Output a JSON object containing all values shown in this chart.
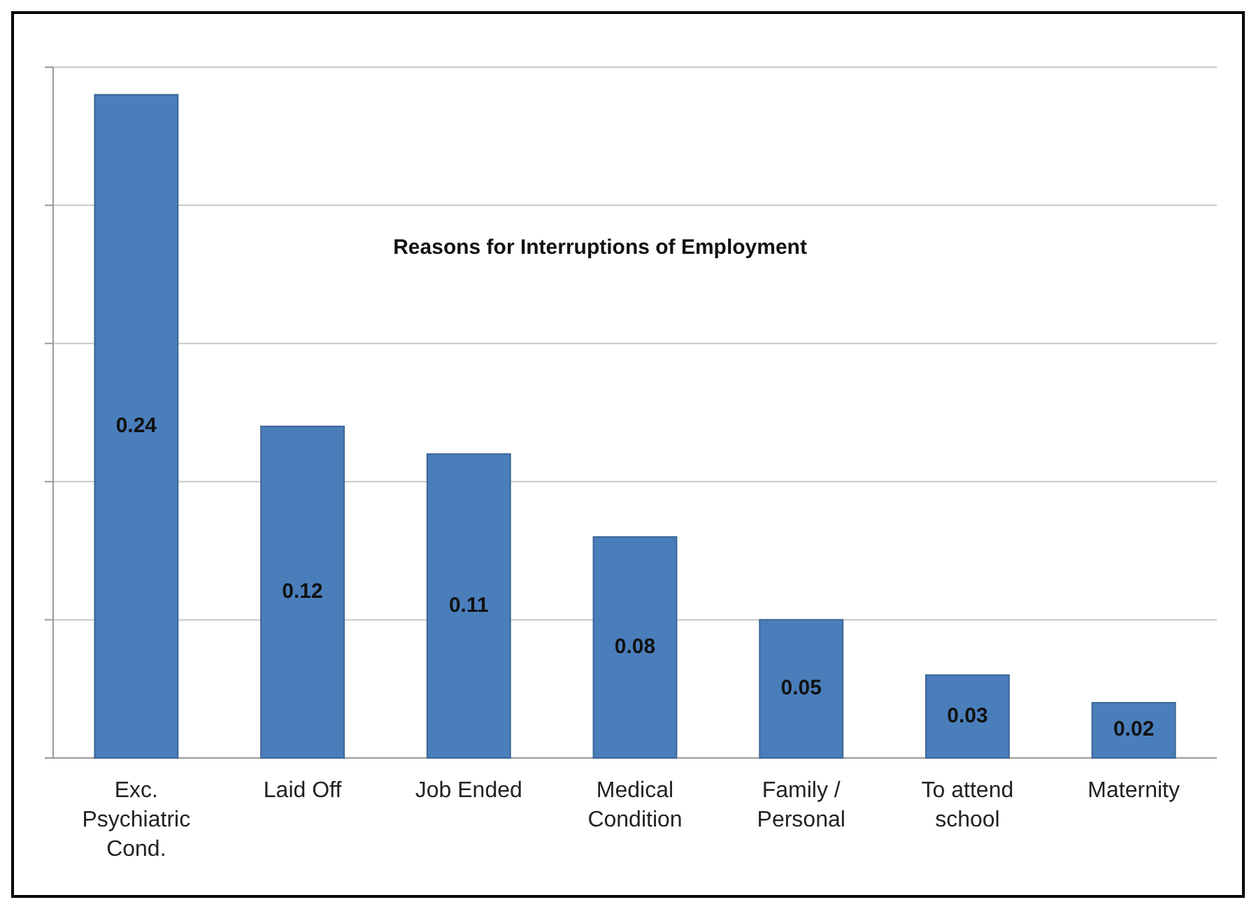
{
  "chart_data": {
    "type": "bar",
    "title": "Reasons for Interruptions of Employment",
    "categories": [
      "Exc. Psychiatric Cond.",
      "Laid Off",
      "Job Ended",
      "Medical Condition",
      "Family / Personal",
      "To attend school",
      "Maternity"
    ],
    "values": [
      0.24,
      0.12,
      0.11,
      0.08,
      0.05,
      0.03,
      0.02
    ],
    "color": "#4a7ebb",
    "ylim": [
      0,
      0.25
    ],
    "yticks": [
      {
        "value": 0,
        "label": null
      },
      {
        "value": 0.05,
        "label": null
      },
      {
        "value": 0.1,
        "label": null
      },
      {
        "value": 0.15,
        "label": null
      },
      {
        "value": 0.2,
        "label": null
      },
      {
        "value": 0.25,
        "label": null
      }
    ],
    "tick_labels": "x",
    "grid": "y",
    "data_labels": true
  }
}
